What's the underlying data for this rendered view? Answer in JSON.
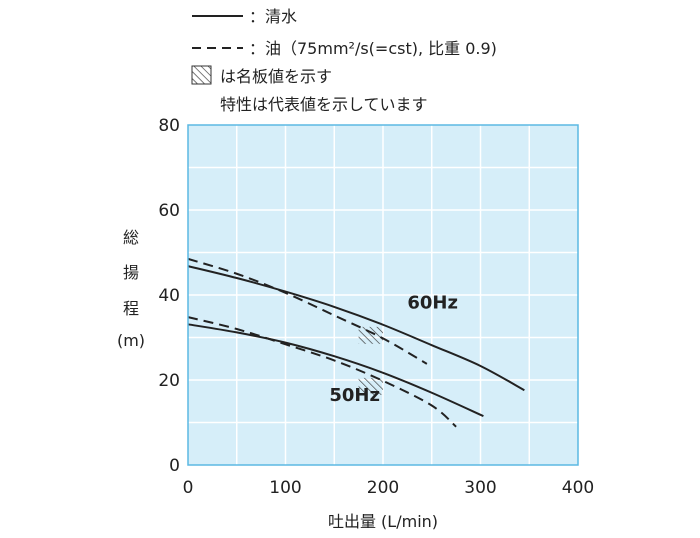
{
  "chart_data": {
    "type": "line",
    "xlabel": "吐出量 (L/min)",
    "ylabel_chars": [
      "総",
      "揚",
      "程",
      "(m)"
    ],
    "xlim": [
      0,
      400
    ],
    "ylim": [
      0,
      80
    ],
    "xticks": [
      "0",
      "100",
      "200",
      "300",
      "400"
    ],
    "yticks": [
      "0",
      "20",
      "40",
      "60",
      "80"
    ],
    "grid": true,
    "plot_background": "#d6eef9",
    "grid_color": "#ffffff",
    "frame_color": "#5bb8e3",
    "line_color": "#222222",
    "legend": {
      "placement": "top",
      "solid": "：清水",
      "dashed": "：油（75mm²/s(=cst), 比重 0.9)",
      "hatched": "は名板値を示す",
      "note": "特性は代表値を示しています"
    },
    "series": [
      {
        "name": "60Hz",
        "style": "solid",
        "x": [
          0,
          50,
          100,
          150,
          200,
          250,
          300,
          345
        ],
        "y": [
          46.8,
          44.0,
          40.8,
          37.2,
          33.0,
          28.2,
          23.3,
          17.6
        ]
      },
      {
        "name": "60Hz",
        "style": "dashed",
        "x": [
          0,
          50,
          100,
          150,
          200,
          245
        ],
        "y": [
          48.5,
          45.0,
          40.5,
          35.2,
          29.8,
          23.8
        ]
      },
      {
        "name": "50Hz",
        "style": "solid",
        "x": [
          0,
          50,
          100,
          150,
          200,
          250,
          303
        ],
        "y": [
          33.1,
          31.2,
          28.8,
          25.6,
          21.7,
          17.0,
          11.5
        ]
      },
      {
        "name": "50Hz",
        "style": "dashed",
        "x": [
          0,
          50,
          100,
          150,
          200,
          250,
          275
        ],
        "y": [
          34.8,
          32.0,
          28.4,
          24.6,
          19.8,
          14.0,
          9.0
        ]
      }
    ],
    "rated_points": [
      {
        "label": "60Hz",
        "x": [
          175,
          200
        ],
        "y": [
          28.5,
          32.5
        ]
      },
      {
        "label": "50Hz",
        "x": [
          175,
          200
        ],
        "y": [
          16.5,
          20.5
        ]
      }
    ],
    "annotations": [
      {
        "text": "60Hz",
        "x": 225,
        "y": 36.8
      },
      {
        "text": "50Hz",
        "x": 145,
        "y": 15.1
      }
    ]
  }
}
